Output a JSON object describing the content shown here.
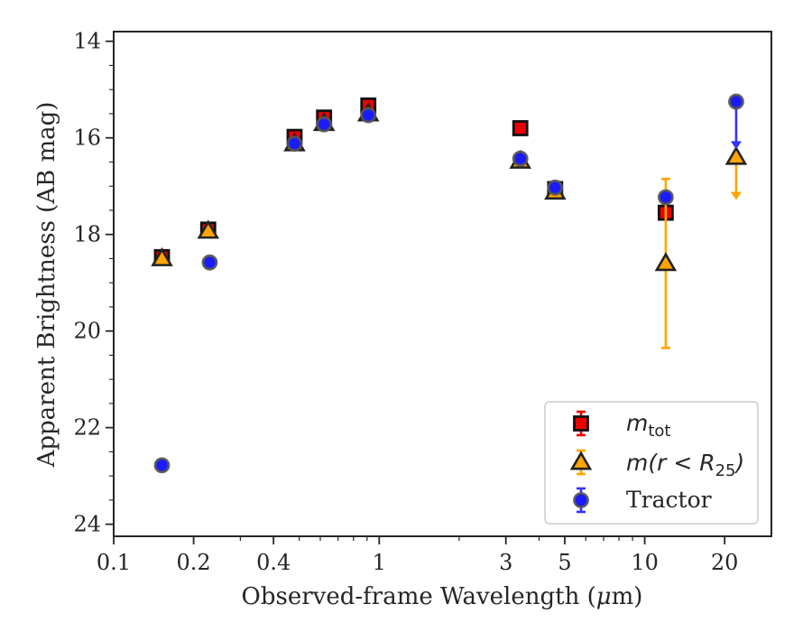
{
  "chart_data": {
    "type": "scatter",
    "xlabel_main": "Observed-frame Wavelength (",
    "xlabel_mu": "μ",
    "xlabel_unit": "m)",
    "ylabel": "Apparent Brightness (AB mag)",
    "xscale": "log",
    "xlim": [
      0.1,
      30
    ],
    "ylim": [
      24.25,
      13.8
    ],
    "y_inverted": true,
    "x_tick_values": [
      0.1,
      0.2,
      0.4,
      1,
      3,
      5,
      10,
      20
    ],
    "x_tick_labels": [
      "0.1",
      "0.2",
      "0.4",
      "1",
      "3",
      "5",
      "10",
      "20"
    ],
    "y_tick_values": [
      14,
      16,
      18,
      20,
      22,
      24
    ],
    "y_tick_labels": [
      "14",
      "16",
      "18",
      "20",
      "22",
      "24"
    ],
    "legend_position": "lower-right",
    "series": [
      {
        "key": "mtot",
        "legend_main": "m",
        "legend_sub": "tot",
        "marker": "square",
        "color": "#ee0000",
        "errcolor": "#ee0000",
        "points": [
          {
            "x": 0.152,
            "y": 18.47,
            "err": 0.05
          },
          {
            "x": 0.227,
            "y": 17.9,
            "err": 0.05
          },
          {
            "x": 0.48,
            "y": 15.98,
            "err": 0.05
          },
          {
            "x": 0.62,
            "y": 15.58,
            "err": 0.05
          },
          {
            "x": 0.91,
            "y": 15.33,
            "err": 0.05
          },
          {
            "x": 3.4,
            "y": 15.8,
            "err": 0.05
          },
          {
            "x": 4.6,
            "y": 17.06,
            "err": 0.05
          },
          {
            "x": 12.0,
            "y": 17.55,
            "err": 0.05
          }
        ]
      },
      {
        "key": "mr25",
        "legend_main": "m(r < R",
        "legend_sub": "25",
        "legend_tail": ")",
        "marker": "triangle",
        "color": "#ffa500",
        "errcolor": "#ffa500",
        "points": [
          {
            "x": 0.152,
            "y": 18.5,
            "err": 0.05
          },
          {
            "x": 0.227,
            "y": 17.93,
            "err": 0.05
          },
          {
            "x": 0.48,
            "y": 16.12,
            "err": 0.05
          },
          {
            "x": 0.62,
            "y": 15.7,
            "err": 0.05
          },
          {
            "x": 0.91,
            "y": 15.5,
            "err": 0.05
          },
          {
            "x": 3.4,
            "y": 16.48,
            "err": 0.05
          },
          {
            "x": 4.6,
            "y": 17.12,
            "err": 0.05
          },
          {
            "x": 12.0,
            "y": 18.6,
            "err": 1.75
          },
          {
            "x": 22.1,
            "y": 16.4,
            "upper_limit": true,
            "arrow_to": 17.25
          }
        ]
      },
      {
        "key": "tractor",
        "legend_main": "Tractor",
        "marker": "circle",
        "color": "#1a1aff",
        "errcolor": "#3333ff",
        "points": [
          {
            "x": 0.152,
            "y": 22.78,
            "err": 0.05
          },
          {
            "x": 0.23,
            "y": 18.58,
            "err": 0.05
          },
          {
            "x": 0.48,
            "y": 16.12,
            "err": 0.05
          },
          {
            "x": 0.62,
            "y": 15.72,
            "err": 0.05
          },
          {
            "x": 0.91,
            "y": 15.53,
            "err": 0.05
          },
          {
            "x": 3.4,
            "y": 16.43,
            "err": 0.05
          },
          {
            "x": 4.6,
            "y": 17.03,
            "err": 0.05
          },
          {
            "x": 12.0,
            "y": 17.23,
            "err": 0.05
          },
          {
            "x": 22.1,
            "y": 15.25,
            "upper_limit": true,
            "arrow_to": 16.2
          }
        ]
      }
    ]
  }
}
